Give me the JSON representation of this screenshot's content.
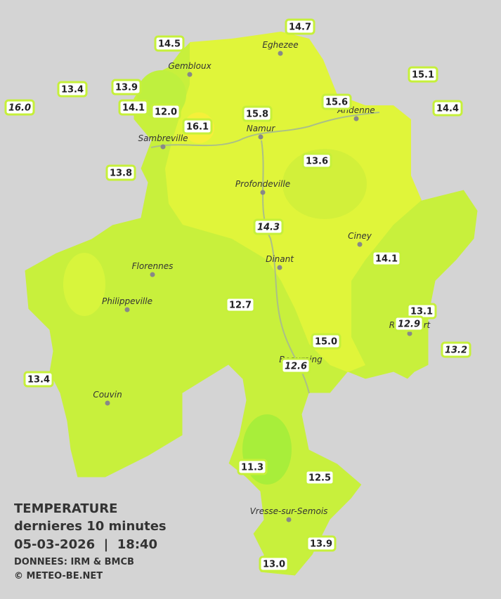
{
  "stations": [
    {
      "value": "14.7"
    },
    {
      "value": "14.5"
    },
    {
      "value": "15.1"
    },
    {
      "value": "13.4"
    },
    {
      "value": "13.9"
    },
    {
      "value": "16.0",
      "italic": true
    },
    {
      "value": "14.1"
    },
    {
      "value": "12.0"
    },
    {
      "value": "16.1"
    },
    {
      "value": "15.8"
    },
    {
      "value": "15.6"
    },
    {
      "value": "14.4"
    },
    {
      "value": "13.8"
    },
    {
      "value": "13.6"
    },
    {
      "value": "14.3",
      "italic": true
    },
    {
      "value": "14.1"
    },
    {
      "value": "12.7"
    },
    {
      "value": "13.1"
    },
    {
      "value": "12.9",
      "italic": true
    },
    {
      "value": "15.0"
    },
    {
      "value": "13.2",
      "italic": true
    },
    {
      "value": "12.6",
      "italic": true
    },
    {
      "value": "13.4"
    },
    {
      "value": "11.3"
    },
    {
      "value": "12.5"
    },
    {
      "value": "13.9"
    },
    {
      "value": "13.0"
    }
  ],
  "cities": [
    "Eghezee",
    "Gembloux",
    "Andenne",
    "Namur",
    "Sambreville",
    "Profondeville",
    "Ciney",
    "Dinant",
    "Florennes",
    "Philippeville",
    "Rochefort",
    "Beauraing",
    "Couvin",
    "Vresse-sur-Semois"
  ],
  "legend": {
    "title": "TEMPERATURE",
    "subtitle": "dernieres 10 minutes",
    "datetime": "05-03-2026  |  18:40",
    "source": "DONNEES: IRM & BMCB",
    "copyright": "© METEO-BE.NET"
  }
}
